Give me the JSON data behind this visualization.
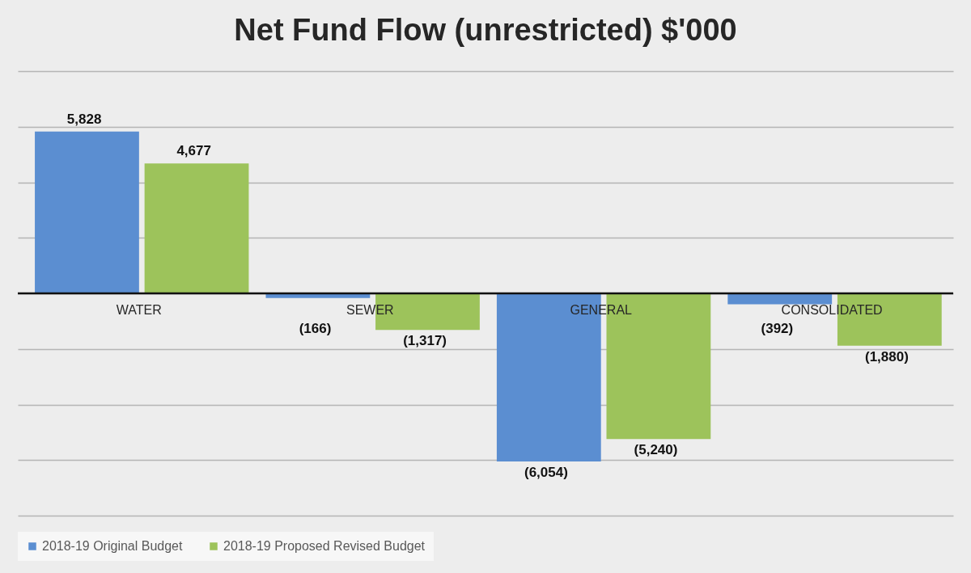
{
  "chart_data": {
    "type": "bar",
    "title": "Net Fund Flow (unrestricted) $'000",
    "categories": [
      "WATER",
      "SEWER",
      "GENERAL",
      "CONSOLIDATED"
    ],
    "series": [
      {
        "name": "2018-19 Original Budget",
        "color": "#5b8ed1",
        "values": [
          5828,
          -166,
          -6054,
          -392
        ],
        "value_labels": [
          "5,828",
          "(166)",
          "(6,054)",
          "(392)"
        ]
      },
      {
        "name": "2018-19 Proposed Revised Budget",
        "color": "#9dc35b",
        "values": [
          4677,
          -1317,
          -5240,
          -1880
        ],
        "value_labels": [
          "4,677",
          "(1,317)",
          "(5,240)",
          "(1,880)"
        ]
      }
    ],
    "ylim": [
      -8000,
      8000
    ],
    "yticks": [
      {
        "value": -8000,
        "label": null
      },
      {
        "value": -6000,
        "label": null
      },
      {
        "value": -4000,
        "label": null
      },
      {
        "value": -2000,
        "label": null
      },
      {
        "value": 0,
        "label": null
      },
      {
        "value": 2000,
        "label": null
      },
      {
        "value": 4000,
        "label": null
      },
      {
        "value": 6000,
        "label": null
      },
      {
        "value": 8000,
        "label": null
      }
    ],
    "tick_labels": "x",
    "grid": "y",
    "legend": "bottom"
  }
}
